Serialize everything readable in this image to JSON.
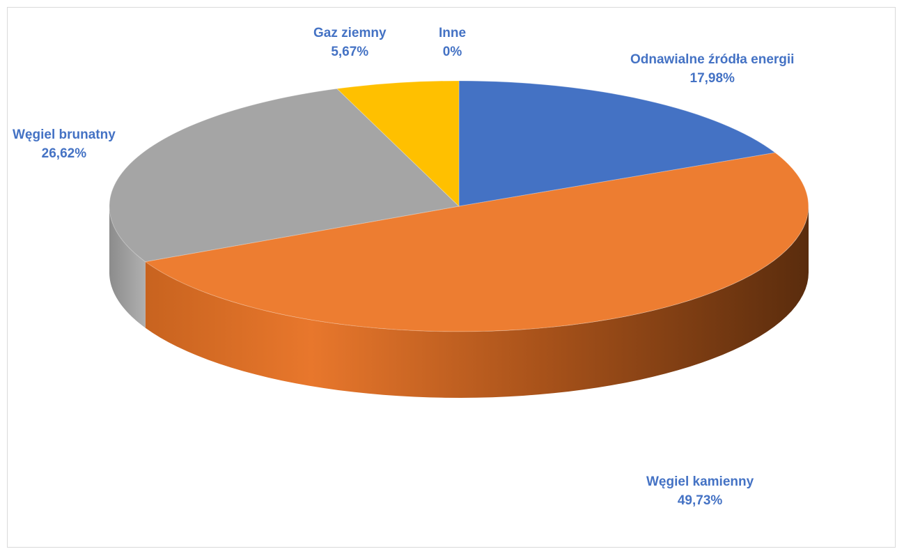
{
  "chart_data": {
    "type": "pie",
    "style": "3d",
    "title": "",
    "slices": [
      {
        "name": "Odnawialne źródła energii",
        "value": 17.98,
        "value_label": "17,98%",
        "color": "#4472c4"
      },
      {
        "name": "Węgiel kamienny",
        "value": 49.73,
        "value_label": "49,73%",
        "color": "#ed7d31"
      },
      {
        "name": "Węgiel brunatny",
        "value": 26.62,
        "value_label": "26,62%",
        "color": "#a5a5a5"
      },
      {
        "name": "Gaz ziemny",
        "value": 5.67,
        "value_label": "5,67%",
        "color": "#ffc000"
      },
      {
        "name": "Inne",
        "value": 0,
        "value_label": "0%",
        "color": "#5b9bd5"
      }
    ],
    "label_color": "#4472c4",
    "legend": "none"
  }
}
